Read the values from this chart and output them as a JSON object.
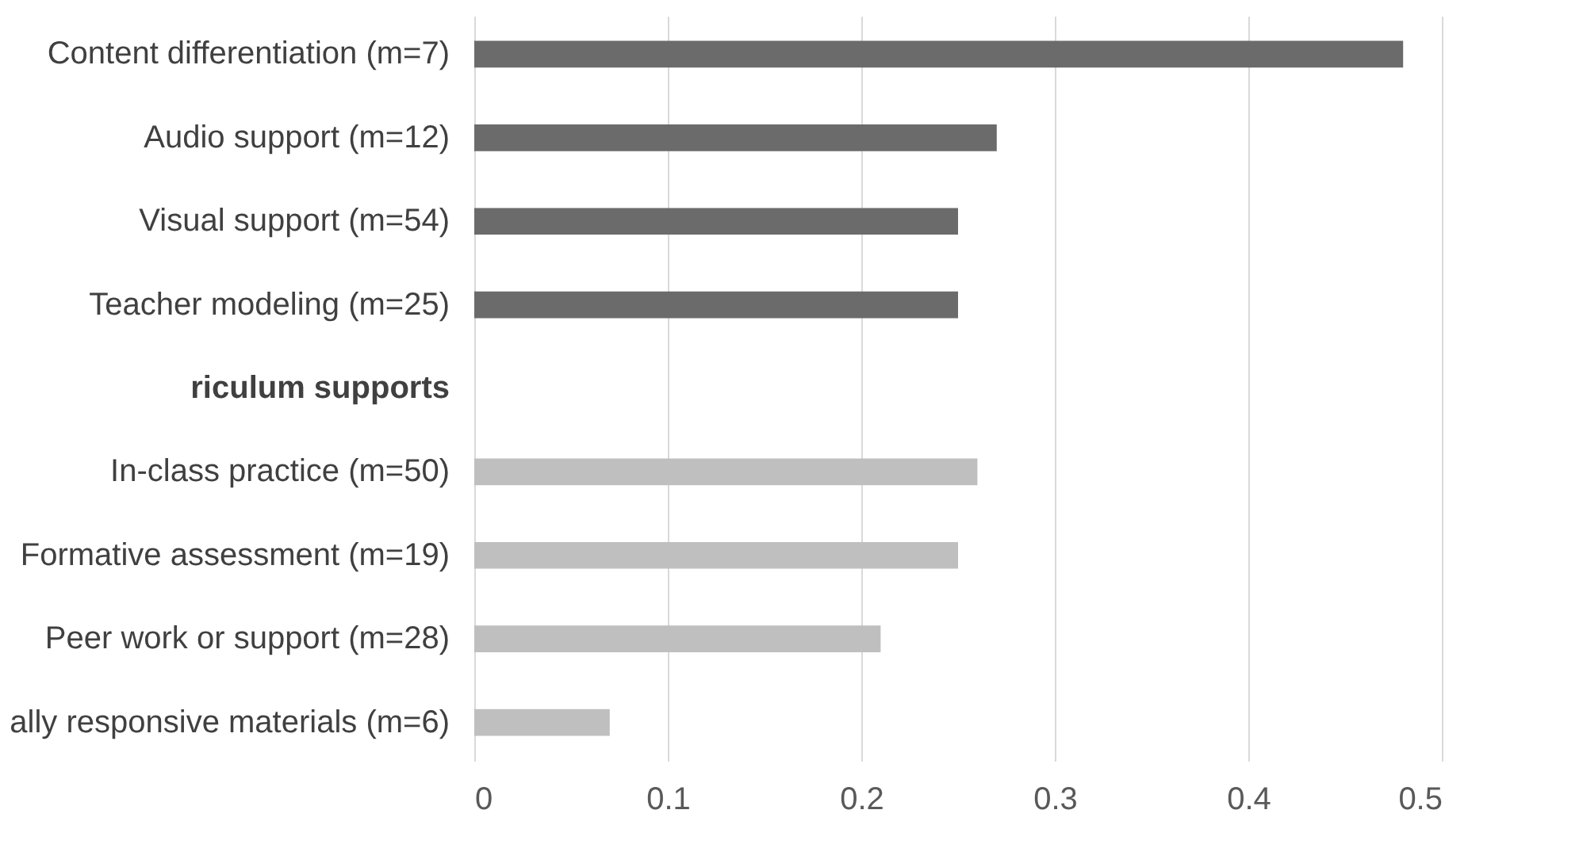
{
  "chart_data": {
    "type": "bar",
    "orientation": "horizontal",
    "categories": [
      "Content differentiation (m=7)",
      "Audio support (m=12)",
      "Visual support (m=54)",
      "Teacher modeling (m=25)",
      "riculum supports",
      "In-class practice (m=50)",
      "Formative assessment (m=19)",
      "Peer work or support (m=28)",
      "ally responsive materials (m=6)"
    ],
    "values": [
      0.48,
      0.27,
      0.25,
      0.25,
      null,
      0.26,
      0.25,
      0.21,
      0.07
    ],
    "colors": [
      "#6b6b6b",
      "#6b6b6b",
      "#6b6b6b",
      "#6b6b6b",
      "#6b6b6b",
      "#bfbfbf",
      "#bfbfbf",
      "#bfbfbf",
      "#bfbfbf"
    ],
    "xlim": [
      0,
      0.5
    ],
    "xticks": [
      0,
      0.1,
      0.2,
      0.3,
      0.4,
      0.5
    ],
    "grid": "x"
  }
}
